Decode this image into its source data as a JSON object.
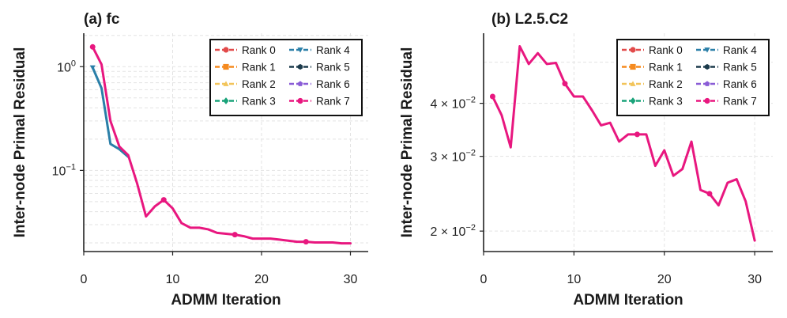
{
  "chart_data": [
    {
      "type": "line",
      "panel": "(a) fc",
      "title": "(a) fc",
      "xlabel": "ADMM Iteration",
      "ylabel": "Inter-node Primal Residual",
      "yscale": "log",
      "xlim": [
        0,
        32
      ],
      "ylim": [
        0.0165,
        2.1
      ],
      "xticks": [
        0,
        10,
        20,
        30
      ],
      "xtick_labels": [
        "0",
        "10",
        "20",
        "30"
      ],
      "yticks": [
        1,
        0.1
      ],
      "ytick_labels": [
        {
          "base": "10",
          "exp": "0"
        },
        {
          "base": "10",
          "exp": "−1"
        }
      ],
      "legend_position": "top-right",
      "series": [
        {
          "name": "Rank 0",
          "color": "#e24a4a",
          "marker": "circle",
          "x": [],
          "values": []
        },
        {
          "name": "Rank 1",
          "color": "#f58a1f",
          "marker": "square",
          "x": [],
          "values": []
        },
        {
          "name": "Rank 2",
          "color": "#f2c45a",
          "marker": "triangle-up",
          "x": [],
          "values": []
        },
        {
          "name": "Rank 3",
          "color": "#1aa37a",
          "marker": "diamond",
          "x": [],
          "values": []
        },
        {
          "name": "Rank 4",
          "color": "#2a7fa8",
          "marker": "triangle-down",
          "x": [
            1,
            2,
            3,
            4,
            5
          ],
          "values": [
            0.98,
            0.62,
            0.18,
            0.16,
            0.135
          ]
        },
        {
          "name": "Rank 5",
          "color": "#1b3a4b",
          "marker": "hexagon",
          "x": [],
          "values": []
        },
        {
          "name": "Rank 6",
          "color": "#8a5cd6",
          "marker": "pentagon",
          "x": [],
          "values": []
        },
        {
          "name": "Rank 7",
          "color": "#e8177f",
          "marker": "circle",
          "x": [
            1,
            2,
            3,
            4,
            5,
            6,
            7,
            8,
            9,
            10,
            11,
            12,
            13,
            14,
            15,
            16,
            17,
            18,
            19,
            20,
            21,
            22,
            23,
            24,
            25,
            26,
            27,
            28,
            29,
            30
          ],
          "values": [
            1.55,
            1.05,
            0.3,
            0.17,
            0.14,
            0.075,
            0.036,
            0.045,
            0.052,
            0.043,
            0.031,
            0.028,
            0.028,
            0.027,
            0.025,
            0.0245,
            0.024,
            0.0232,
            0.022,
            0.022,
            0.022,
            0.0215,
            0.021,
            0.0205,
            0.0205,
            0.0202,
            0.0202,
            0.0202,
            0.0198,
            0.0198
          ],
          "marker_points": [
            1,
            9,
            17,
            25
          ]
        }
      ]
    },
    {
      "type": "line",
      "panel": "(b) L2.5.C2",
      "title": "(b) L2.5.C2",
      "xlabel": "ADMM Iteration",
      "ylabel": "Inter-node Primal Residual",
      "yscale": "log",
      "xlim": [
        0,
        32
      ],
      "ylim": [
        0.0179,
        0.0585
      ],
      "xticks": [
        0,
        10,
        20,
        30
      ],
      "xtick_labels": [
        "0",
        "10",
        "20",
        "30"
      ],
      "yticks": [
        0.04,
        0.03,
        0.02
      ],
      "ytick_labels": [
        {
          "coef": "4 × ",
          "base": "10",
          "exp": "−2"
        },
        {
          "coef": "3 × ",
          "base": "10",
          "exp": "−2"
        },
        {
          "coef": "2 × ",
          "base": "10",
          "exp": "−2"
        }
      ],
      "legend_position": "top-right",
      "series": [
        {
          "name": "Rank 0",
          "color": "#e24a4a",
          "marker": "circle",
          "x": [],
          "values": []
        },
        {
          "name": "Rank 1",
          "color": "#f58a1f",
          "marker": "square",
          "x": [],
          "values": []
        },
        {
          "name": "Rank 2",
          "color": "#f2c45a",
          "marker": "triangle-up",
          "x": [],
          "values": []
        },
        {
          "name": "Rank 3",
          "color": "#1aa37a",
          "marker": "diamond",
          "x": [],
          "values": []
        },
        {
          "name": "Rank 4",
          "color": "#2a7fa8",
          "marker": "triangle-down",
          "x": [],
          "values": []
        },
        {
          "name": "Rank 5",
          "color": "#1b3a4b",
          "marker": "hexagon",
          "x": [],
          "values": []
        },
        {
          "name": "Rank 6",
          "color": "#8a5cd6",
          "marker": "pentagon",
          "x": [],
          "values": []
        },
        {
          "name": "Rank 7",
          "color": "#e8177f",
          "marker": "circle",
          "x": [
            1,
            2,
            3,
            4,
            5,
            6,
            7,
            8,
            9,
            10,
            11,
            12,
            13,
            14,
            15,
            16,
            17,
            18,
            19,
            20,
            21,
            22,
            23,
            24,
            25,
            26,
            27,
            28,
            29,
            30
          ],
          "values": [
            0.0415,
            0.0375,
            0.0315,
            0.0545,
            0.0495,
            0.0525,
            0.0495,
            0.0498,
            0.0445,
            0.0415,
            0.0415,
            0.0385,
            0.0355,
            0.036,
            0.0325,
            0.0338,
            0.0338,
            0.0338,
            0.0285,
            0.031,
            0.027,
            0.028,
            0.0325,
            0.025,
            0.0245,
            0.023,
            0.026,
            0.0265,
            0.0235,
            0.019
          ],
          "marker_points": [
            1,
            9,
            17,
            25
          ]
        }
      ]
    }
  ]
}
